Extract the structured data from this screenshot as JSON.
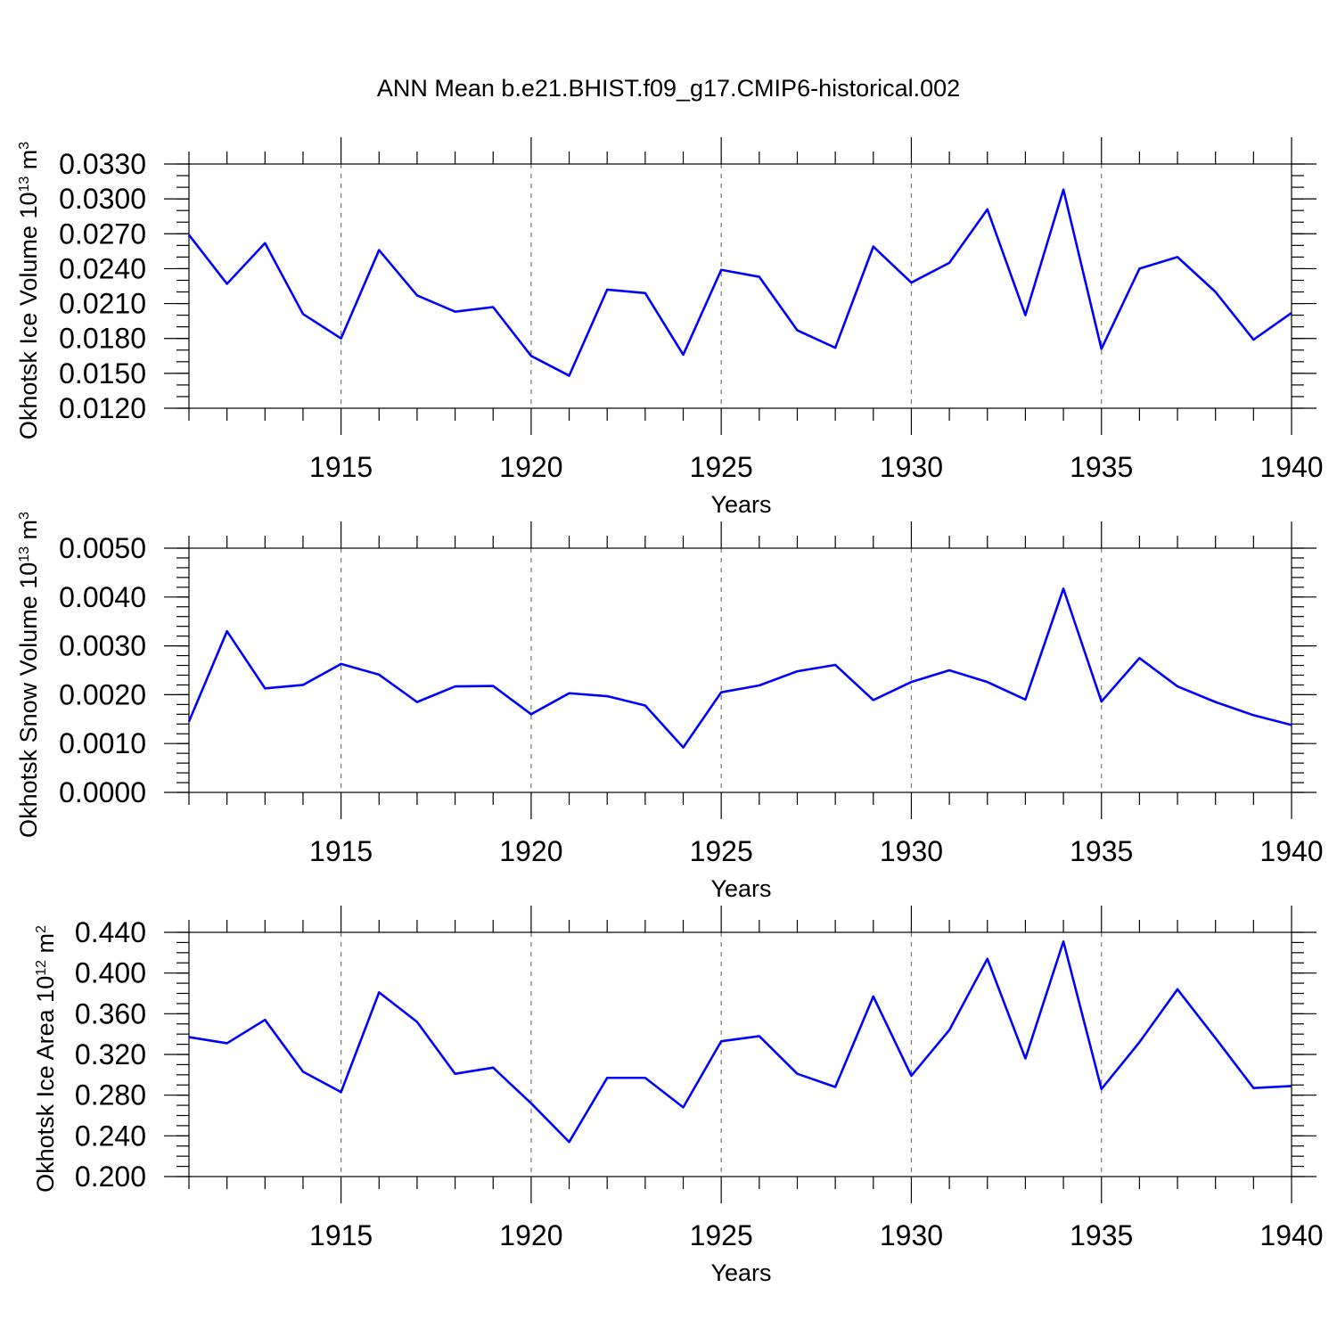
{
  "title": "ANN Mean b.e21.BHIST.f09_g17.CMIP6-historical.002",
  "chart_data": [
    {
      "type": "line",
      "name": "ice-volume",
      "ylabel_main": "Okhotsk Ice Volume 10",
      "ylabel_exp": "13",
      "ylabel_unit": " m",
      "ylabel_unit_exp": "3",
      "xlabel": "Years",
      "xlim": [
        1911,
        1940
      ],
      "ylim": [
        0.012,
        0.033
      ],
      "xticks": [
        1915,
        1920,
        1925,
        1930,
        1935,
        1940
      ],
      "xtick_labels": [
        "1915",
        "1920",
        "1925",
        "1930",
        "1935",
        "1940"
      ],
      "yticks": [
        0.012,
        0.015,
        0.018,
        0.021,
        0.024,
        0.027,
        0.03,
        0.033
      ],
      "ytick_labels": [
        "0.0120",
        "0.0150",
        "0.0180",
        "0.0210",
        "0.0240",
        "0.0270",
        "0.0300",
        "0.0330"
      ],
      "yminor_step": 0.001,
      "grid": "dashed vertical at major x ticks",
      "color": "#0000ff",
      "x": [
        1911,
        1912,
        1913,
        1914,
        1915,
        1916,
        1917,
        1918,
        1919,
        1920,
        1921,
        1922,
        1923,
        1924,
        1925,
        1926,
        1927,
        1928,
        1929,
        1930,
        1931,
        1932,
        1933,
        1934,
        1935,
        1936,
        1937,
        1938,
        1939,
        1940
      ],
      "y": [
        0.0269,
        0.0227,
        0.0262,
        0.0201,
        0.018,
        0.0256,
        0.0217,
        0.0203,
        0.0207,
        0.0165,
        0.0148,
        0.0222,
        0.0219,
        0.0166,
        0.0239,
        0.0233,
        0.0187,
        0.0172,
        0.0259,
        0.0228,
        0.0245,
        0.0291,
        0.02,
        0.0308,
        0.0171,
        0.024,
        0.025,
        0.022,
        0.0179,
        0.0202
      ]
    },
    {
      "type": "line",
      "name": "snow-volume",
      "ylabel_main": "Okhotsk Snow Volume 10",
      "ylabel_exp": "13",
      "ylabel_unit": " m",
      "ylabel_unit_exp": "3",
      "xlabel": "Years",
      "xlim": [
        1911,
        1940
      ],
      "ylim": [
        0.0,
        0.005
      ],
      "xticks": [
        1915,
        1920,
        1925,
        1930,
        1935,
        1940
      ],
      "xtick_labels": [
        "1915",
        "1920",
        "1925",
        "1930",
        "1935",
        "1940"
      ],
      "yticks": [
        0.0,
        0.001,
        0.002,
        0.003,
        0.004,
        0.005
      ],
      "ytick_labels": [
        "0.0000",
        "0.0010",
        "0.0020",
        "0.0030",
        "0.0040",
        "0.0050"
      ],
      "yminor_step": 0.0002,
      "grid": "dashed vertical at major x ticks",
      "color": "#0000ff",
      "x": [
        1911,
        1912,
        1913,
        1914,
        1915,
        1916,
        1917,
        1918,
        1919,
        1920,
        1921,
        1922,
        1923,
        1924,
        1925,
        1926,
        1927,
        1928,
        1929,
        1930,
        1931,
        1932,
        1933,
        1934,
        1935,
        1936,
        1937,
        1938,
        1939,
        1940
      ],
      "y": [
        0.00145,
        0.0033,
        0.00213,
        0.0022,
        0.00263,
        0.00241,
        0.00185,
        0.00217,
        0.00218,
        0.0016,
        0.00203,
        0.00197,
        0.00178,
        0.00092,
        0.00205,
        0.00219,
        0.00248,
        0.00261,
        0.00189,
        0.00226,
        0.0025,
        0.00226,
        0.0019,
        0.00417,
        0.00186,
        0.00275,
        0.00217,
        0.00185,
        0.00158,
        0.00138
      ]
    },
    {
      "type": "line",
      "name": "ice-area",
      "ylabel_main": "Okhotsk Ice Area 10",
      "ylabel_exp": "12",
      "ylabel_unit": " m",
      "ylabel_unit_exp": "2",
      "xlabel": "Years",
      "xlim": [
        1911,
        1940
      ],
      "ylim": [
        0.2,
        0.44
      ],
      "xticks": [
        1915,
        1920,
        1925,
        1930,
        1935,
        1940
      ],
      "xtick_labels": [
        "1915",
        "1920",
        "1925",
        "1930",
        "1935",
        "1940"
      ],
      "yticks": [
        0.2,
        0.24,
        0.28,
        0.32,
        0.36,
        0.4,
        0.44
      ],
      "ytick_labels": [
        "0.200",
        "0.240",
        "0.280",
        "0.320",
        "0.360",
        "0.400",
        "0.440"
      ],
      "yminor_step": 0.01,
      "grid": "dashed vertical at major x ticks",
      "color": "#0000ff",
      "x": [
        1911,
        1912,
        1913,
        1914,
        1915,
        1916,
        1917,
        1918,
        1919,
        1920,
        1921,
        1922,
        1923,
        1924,
        1925,
        1926,
        1927,
        1928,
        1929,
        1930,
        1931,
        1932,
        1933,
        1934,
        1935,
        1936,
        1937,
        1938,
        1939,
        1940
      ],
      "y": [
        0.337,
        0.331,
        0.354,
        0.303,
        0.283,
        0.381,
        0.352,
        0.301,
        0.307,
        0.272,
        0.234,
        0.297,
        0.297,
        0.268,
        0.333,
        0.338,
        0.301,
        0.288,
        0.377,
        0.299,
        0.344,
        0.414,
        0.316,
        0.431,
        0.286,
        0.332,
        0.384,
        0.336,
        0.287,
        0.289
      ]
    }
  ]
}
